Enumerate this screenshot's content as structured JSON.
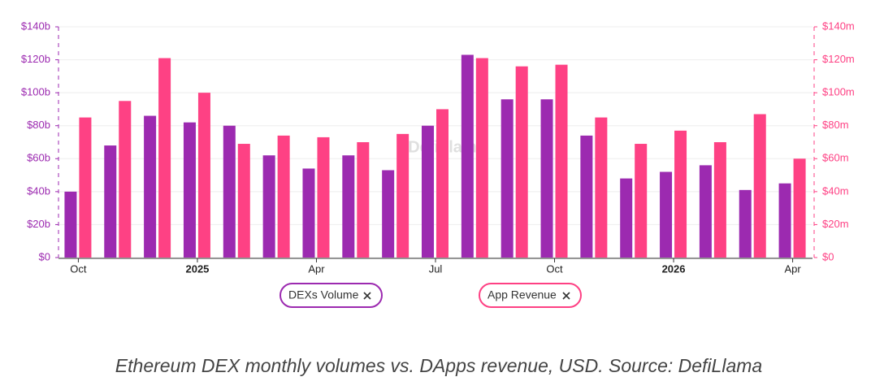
{
  "chart_data": {
    "type": "bar",
    "categories": [
      "Oct",
      null,
      null,
      "2025",
      null,
      null,
      "Apr",
      null,
      null,
      "Jul",
      null,
      null,
      "Oct",
      null,
      null,
      "2026",
      null,
      null,
      "Apr"
    ],
    "series": [
      {
        "name": "DEXs Volume",
        "color": "#9c2ab0",
        "values": [
          40,
          68,
          86,
          82,
          80,
          62,
          54,
          62,
          53,
          80,
          123,
          96,
          96,
          74,
          48,
          52,
          56,
          41,
          45
        ]
      },
      {
        "name": "App Revenue",
        "color": "#fe4184",
        "axis": "y2",
        "values": [
          85,
          95,
          121,
          100,
          69,
          74,
          73,
          70,
          75,
          90,
          121,
          116,
          117,
          85,
          69,
          77,
          70,
          87,
          60
        ]
      }
    ],
    "ylim": [
      0,
      140
    ],
    "yticks": [
      {
        "value": 0,
        "label": "$0"
      },
      {
        "value": 20,
        "label": "$20b"
      },
      {
        "value": 40,
        "label": "$40b"
      },
      {
        "value": 60,
        "label": "$60b"
      },
      {
        "value": 80,
        "label": "$80b"
      },
      {
        "value": 100,
        "label": "$100b"
      },
      {
        "value": 120,
        "label": "$120b"
      },
      {
        "value": 140,
        "label": "$140b"
      }
    ],
    "y2lim": [
      0,
      140
    ],
    "y2ticks": [
      {
        "value": 0,
        "label": "$0"
      },
      {
        "value": 20,
        "label": "$20m"
      },
      {
        "value": 40,
        "label": "$40m"
      },
      {
        "value": 60,
        "label": "$60m"
      },
      {
        "value": 80,
        "label": "$80m"
      },
      {
        "value": 100,
        "label": "$100m"
      },
      {
        "value": 120,
        "label": "$120m"
      },
      {
        "value": 140,
        "label": "$140m"
      }
    ],
    "grid": true,
    "watermark": "DefiLlama",
    "caption": "Ethereum DEX monthly volumes vs. DApps revenue, USD. Source: DefiLlama"
  }
}
